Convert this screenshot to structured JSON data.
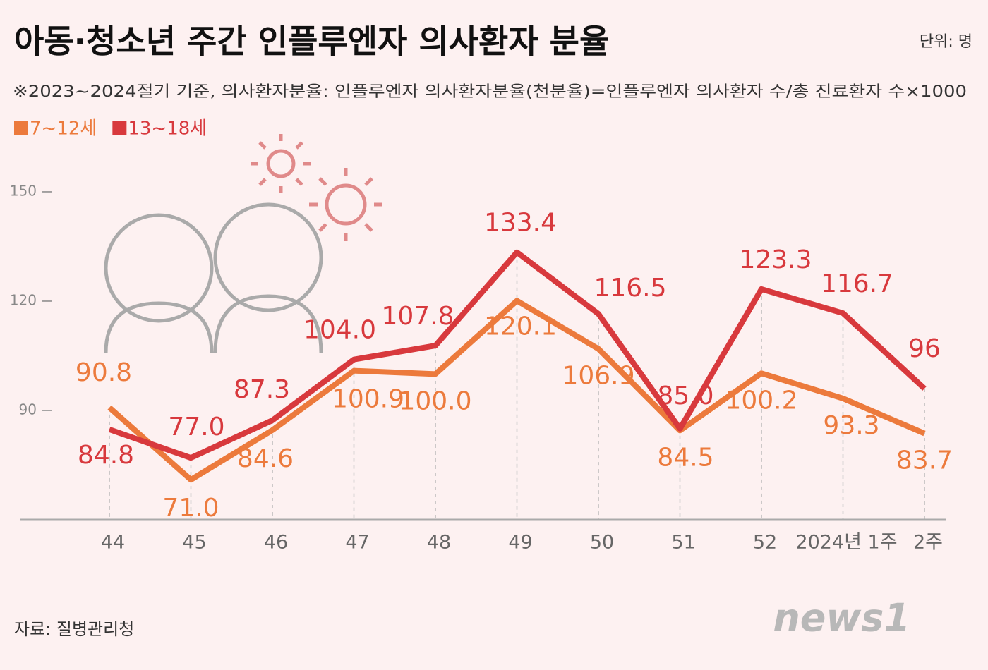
{
  "chart_data": {
    "type": "line",
    "title": "아동·청소년 주간 인플루엔자 의사환자 분율",
    "unit": "단위: 명",
    "subtitle": "※2023~2024절기 기준, 의사환자분율: 인플루엔자 의사환자분율(천분율)=인플루엔자 의사환자 수/총 진료환자 수×1000",
    "source": "자료: 질병관리청",
    "logo": "news1",
    "categories": [
      "44",
      "45",
      "46",
      "47",
      "48",
      "49",
      "50",
      "51",
      "52",
      "2024년 1주",
      "2주"
    ],
    "series": [
      {
        "name": "7~12세",
        "color": "#ec7a3c",
        "values": [
          90.8,
          71.0,
          84.6,
          100.9,
          100.0,
          120.1,
          106.9,
          84.5,
          100.2,
          93.3,
          83.7
        ],
        "value_labels": [
          "90.8",
          "71.0",
          "84.6",
          "100.9",
          "100.0",
          "120.1",
          "106.9",
          "84.5",
          "100.2",
          "93.3",
          "83.7"
        ]
      },
      {
        "name": "13~18세",
        "color": "#d8393d",
        "values": [
          84.8,
          77.0,
          87.3,
          104.0,
          107.8,
          133.4,
          116.5,
          85.0,
          123.3,
          116.7,
          96
        ],
        "value_labels": [
          "84.8",
          "77.0",
          "87.3",
          "104.0",
          "107.8",
          "133.4",
          "116.5",
          "85.0",
          "123.3",
          "116.7",
          "96"
        ]
      }
    ],
    "ylim": [
      60,
      160
    ],
    "yticks": [
      90,
      120,
      150
    ]
  }
}
